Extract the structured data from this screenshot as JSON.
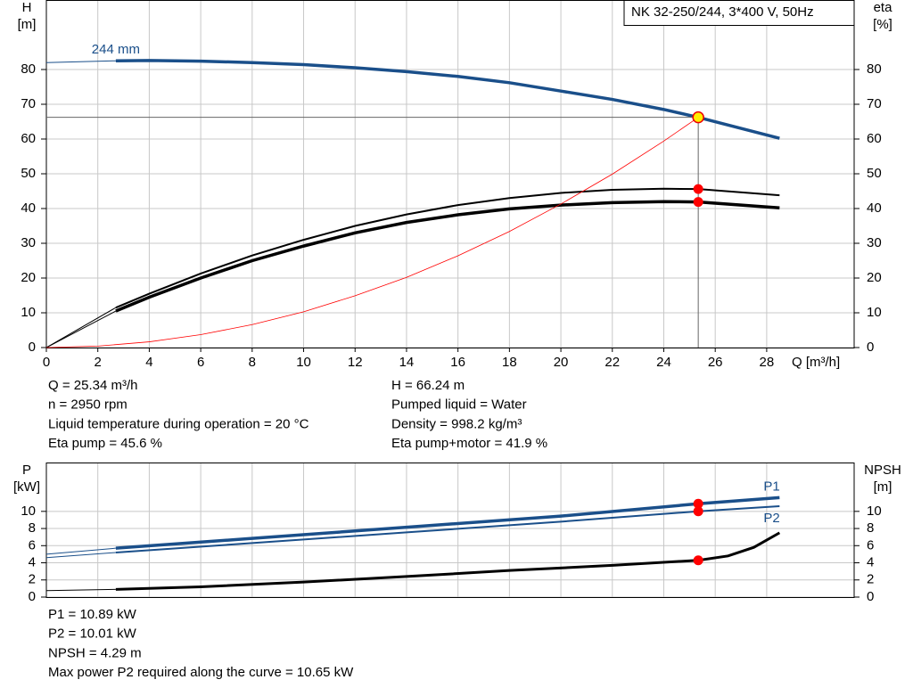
{
  "chart_data": [
    {
      "type": "line",
      "box_label": "NK 32-250/244, 3*400 V, 50Hz",
      "y_label": "H",
      "y_unit": "[m]",
      "y2_label": "eta",
      "y2_unit": "[%]",
      "x_label": "Q [m³/h]",
      "xlim": [
        0,
        31.4
      ],
      "xticks": [
        0,
        2,
        4,
        6,
        8,
        10,
        12,
        14,
        16,
        18,
        20,
        22,
        24,
        26,
        28
      ],
      "ylim": [
        0,
        100
      ],
      "yticks": [
        0,
        10,
        20,
        30,
        40,
        50,
        60,
        70,
        80
      ],
      "y2lim": [
        0,
        100
      ],
      "y2ticks": [
        0,
        10,
        20,
        30,
        40,
        50,
        60,
        70,
        80
      ],
      "grid": true,
      "series": [
        {
          "color": "#1a4f8a",
          "width": 1,
          "x": [
            0,
            2.7
          ],
          "values": [
            82,
            82.5
          ]
        },
        {
          "name": "244 mm",
          "color": "#1a4f8a",
          "width": 3.5,
          "x": [
            2.7,
            4,
            6,
            8,
            10,
            12,
            14,
            16,
            18,
            20,
            22,
            24,
            25.34,
            28.5
          ],
          "values": [
            82.5,
            82.6,
            82.4,
            82,
            81.4,
            80.5,
            79.4,
            78,
            76.2,
            73.8,
            71.4,
            68.5,
            66.24,
            60.2
          ]
        },
        {
          "color": "#000000",
          "width": 1,
          "axis": "y2",
          "x": [
            0,
            2.7
          ],
          "values": [
            0,
            11.5
          ]
        },
        {
          "color": "#000000",
          "width": 2,
          "axis": "y2",
          "x": [
            2.7,
            4,
            6,
            8,
            10,
            12,
            14,
            16,
            18,
            20,
            22,
            24,
            25.34,
            28.5
          ],
          "values": [
            11.5,
            15.5,
            21.3,
            26.5,
            31,
            35,
            38.3,
            41,
            43,
            44.5,
            45.4,
            45.7,
            45.6,
            43.8
          ]
        },
        {
          "color": "#000000",
          "width": 1,
          "axis": "y2",
          "x": [
            0,
            2.7
          ],
          "values": [
            0,
            10.5
          ]
        },
        {
          "color": "#000000",
          "width": 3.5,
          "axis": "y2",
          "x": [
            2.7,
            4,
            6,
            8,
            10,
            12,
            14,
            16,
            18,
            20,
            22,
            24,
            25.34,
            28.5
          ],
          "values": [
            10.5,
            14.5,
            20,
            25,
            29.2,
            33,
            36,
            38.2,
            39.9,
            41,
            41.7,
            42,
            41.9,
            40.2
          ]
        },
        {
          "color": "#ff0000",
          "width": 0.8,
          "x": [
            0,
            2,
            4,
            6,
            8,
            10,
            12,
            14,
            16,
            18,
            20,
            22,
            24,
            25.34
          ],
          "values": [
            0,
            0.41,
            1.65,
            3.72,
            6.6,
            10.3,
            14.9,
            20.2,
            26.4,
            33.4,
            41.3,
            49.9,
            59.4,
            66.24
          ]
        }
      ],
      "markers": [
        {
          "x": 25.34,
          "y": 66.24,
          "color": "#ffee00",
          "crosshair": true
        },
        {
          "x": 25.34,
          "y": 45.6,
          "color": "#ff0000"
        },
        {
          "x": 25.34,
          "y": 41.9,
          "color": "#ff0000"
        }
      ],
      "info": [
        [
          "Q = 25.34 m³/h",
          "n = 2950 rpm",
          "Liquid temperature during operation = 20 °C",
          "Eta pump = 45.6 %"
        ],
        [
          "H = 66.24 m",
          "Pumped liquid = Water",
          "Density = 998.2 kg/m³",
          "Eta pump+motor = 41.9 %"
        ]
      ]
    },
    {
      "type": "line",
      "y_label": "P",
      "y_unit": "[kW]",
      "y2_label": "NPSH",
      "y2_unit": "[m]",
      "xlim": [
        0,
        31.4
      ],
      "ylim": [
        0,
        15.7
      ],
      "yticks": [
        0,
        2,
        4,
        6,
        8,
        10
      ],
      "y2lim": [
        0,
        15.7
      ],
      "y2ticks": [
        0,
        2,
        4,
        6,
        8,
        10
      ],
      "grid": true,
      "series": [
        {
          "color": "#1a4f8a",
          "width": 1,
          "x": [
            0,
            2.7
          ],
          "values": [
            5.0,
            5.7
          ]
        },
        {
          "name": "P1",
          "color": "#1a4f8a",
          "width": 3.5,
          "x": [
            2.7,
            8,
            14,
            20,
            25.34,
            28.5
          ],
          "values": [
            5.7,
            6.85,
            8.15,
            9.45,
            10.89,
            11.6
          ]
        },
        {
          "color": "#1a4f8a",
          "width": 1,
          "x": [
            0,
            2.7
          ],
          "values": [
            4.6,
            5.2
          ]
        },
        {
          "name": "P2",
          "color": "#1a4f8a",
          "width": 2,
          "x": [
            2.7,
            8,
            14,
            20,
            25.34,
            28.5
          ],
          "values": [
            5.2,
            6.3,
            7.55,
            8.8,
            10.01,
            10.6
          ]
        },
        {
          "color": "#000000",
          "width": 1,
          "axis": "y2",
          "x": [
            0,
            2.7
          ],
          "values": [
            0.75,
            0.9
          ]
        },
        {
          "color": "#000000",
          "width": 3,
          "axis": "y2",
          "x": [
            2.7,
            6,
            10,
            14,
            18,
            22,
            25.34,
            26.5,
            27.5,
            28.5
          ],
          "values": [
            0.9,
            1.2,
            1.75,
            2.4,
            3.1,
            3.7,
            4.29,
            4.8,
            5.8,
            7.5
          ]
        }
      ],
      "markers": [
        {
          "x": 25.34,
          "y": 10.89,
          "color": "#ff0000"
        },
        {
          "x": 25.34,
          "y": 10.01,
          "color": "#ff0000"
        },
        {
          "x": 25.34,
          "y": 4.29,
          "color": "#ff0000",
          "axis": "y2"
        }
      ],
      "info": [
        [
          "P1 = 10.89 kW",
          "P2 = 10.01 kW",
          "NPSH = 4.29 m",
          "Max power P2 required along the curve = 10.65 kW"
        ]
      ]
    }
  ]
}
